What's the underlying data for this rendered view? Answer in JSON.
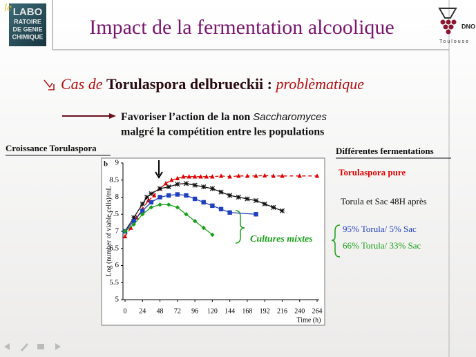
{
  "logo": {
    "prefix": "le",
    "lines": [
      "LABO",
      "RATOIRE",
      "DE GENIE",
      "CHIMIQUE"
    ]
  },
  "logo_right": {
    "name": "DNO",
    "city": "Toulouse"
  },
  "title": "Impact de la fermentation alcoolique",
  "bullet": {
    "part1": "Cas de ",
    "part2": "Torulaspora delbrueckii :",
    "part3": " problèmatique"
  },
  "arrow_text": {
    "line1": "Favoriser l’action de la non ",
    "line1_italic": "Saccharomyces",
    "line2": "malgré la compétition entre les populations"
  },
  "chart_data": {
    "type": "line",
    "title": "Croissance Torulaspora",
    "panel_label": "b",
    "x_label": "Time (h)",
    "y_label": "Log (number of viable cells)/mL",
    "xlim": [
      0,
      264
    ],
    "xticks": [
      0,
      24,
      48,
      72,
      96,
      120,
      144,
      168,
      192,
      216,
      240,
      264
    ],
    "ylim": [
      5,
      9
    ],
    "yticks": [
      5,
      5.5,
      6,
      6.5,
      7,
      7.5,
      8,
      8.5,
      9
    ],
    "legend_title": "Différentes fermentations",
    "annotation": "Cultures mixtes",
    "series": [
      {
        "name": "Torulaspora pure",
        "color": "#e00000",
        "marker": "triangle",
        "line_style": "dashed",
        "x": [
          0,
          8,
          16,
          24,
          32,
          40,
          48,
          56,
          64,
          72,
          80,
          88,
          96,
          104,
          112,
          120,
          132,
          144,
          156,
          168,
          180,
          192,
          204,
          216,
          240,
          264
        ],
        "values": [
          6.85,
          7.1,
          7.4,
          7.65,
          7.9,
          8.05,
          8.25,
          8.4,
          8.5,
          8.55,
          8.6,
          8.6,
          8.6,
          8.6,
          8.6,
          8.6,
          8.62,
          8.6,
          8.62,
          8.62,
          8.62,
          8.63,
          8.62,
          8.62,
          8.62,
          8.62
        ]
      },
      {
        "name": "Torula et Sac 48H après",
        "color": "#111111",
        "marker": "star",
        "line_style": "solid",
        "x": [
          0,
          12,
          24,
          30,
          36,
          48,
          60,
          72,
          84,
          96,
          108,
          120,
          132,
          144,
          156,
          168,
          180,
          192,
          204,
          216
        ],
        "values": [
          7.0,
          7.4,
          7.8,
          8.0,
          8.1,
          8.25,
          8.3,
          8.38,
          8.4,
          8.35,
          8.3,
          8.25,
          8.15,
          8.05,
          8.0,
          7.95,
          7.9,
          7.8,
          7.7,
          7.6
        ]
      },
      {
        "name": "95% Torula/ 5% Sac",
        "color": "#1f3fbf",
        "marker": "square",
        "line_style": "solid",
        "x": [
          0,
          12,
          24,
          36,
          48,
          60,
          72,
          84,
          96,
          108,
          120,
          132,
          144,
          180
        ],
        "values": [
          7.0,
          7.3,
          7.6,
          7.85,
          8.0,
          8.05,
          8.08,
          8.05,
          7.95,
          7.85,
          7.75,
          7.65,
          7.55,
          7.5
        ]
      },
      {
        "name": "66% Torula/ 33% Sac",
        "color": "#19a019",
        "marker": "diamond",
        "line_style": "solid",
        "x": [
          0,
          12,
          24,
          36,
          48,
          60,
          72,
          84,
          96,
          108,
          120
        ],
        "values": [
          7.0,
          7.2,
          7.5,
          7.7,
          7.78,
          7.78,
          7.7,
          7.5,
          7.3,
          7.1,
          6.9
        ]
      }
    ]
  }
}
